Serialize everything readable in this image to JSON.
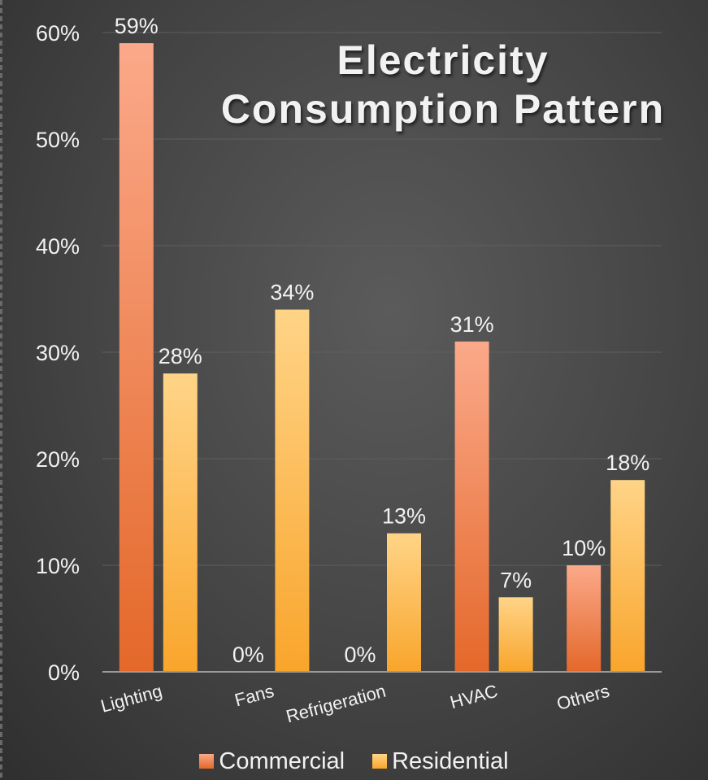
{
  "chart_data": {
    "type": "bar",
    "title_lines": [
      "Electricity",
      "Consumption Pattern"
    ],
    "categories": [
      "Lighting",
      "Fans",
      "Refrigeration",
      "HVAC",
      "Others"
    ],
    "series": [
      {
        "name": "Commercial",
        "values": [
          59,
          0,
          0,
          31,
          10
        ],
        "labels": [
          "59%",
          "0%",
          "0%",
          "31%",
          "10%"
        ]
      },
      {
        "name": "Residential",
        "values": [
          28,
          34,
          13,
          7,
          18
        ],
        "labels": [
          "28%",
          "34%",
          "13%",
          "7%",
          "18%"
        ]
      }
    ],
    "ylim": [
      0,
      60
    ],
    "yticks": [
      0,
      10,
      20,
      30,
      40,
      50,
      60
    ],
    "ytick_labels": [
      "0%",
      "10%",
      "20%",
      "30%",
      "40%",
      "50%",
      "60%"
    ],
    "grid": true,
    "legend_position": "bottom",
    "colors": {
      "commercial_top": "#fba98a",
      "commercial_bottom": "#e4682a",
      "residential_top": "#ffd487",
      "residential_bottom": "#f9a52c",
      "text": "#f2f2f2",
      "grid": "#5e5e5e",
      "axis": "#9a9a9a"
    }
  }
}
